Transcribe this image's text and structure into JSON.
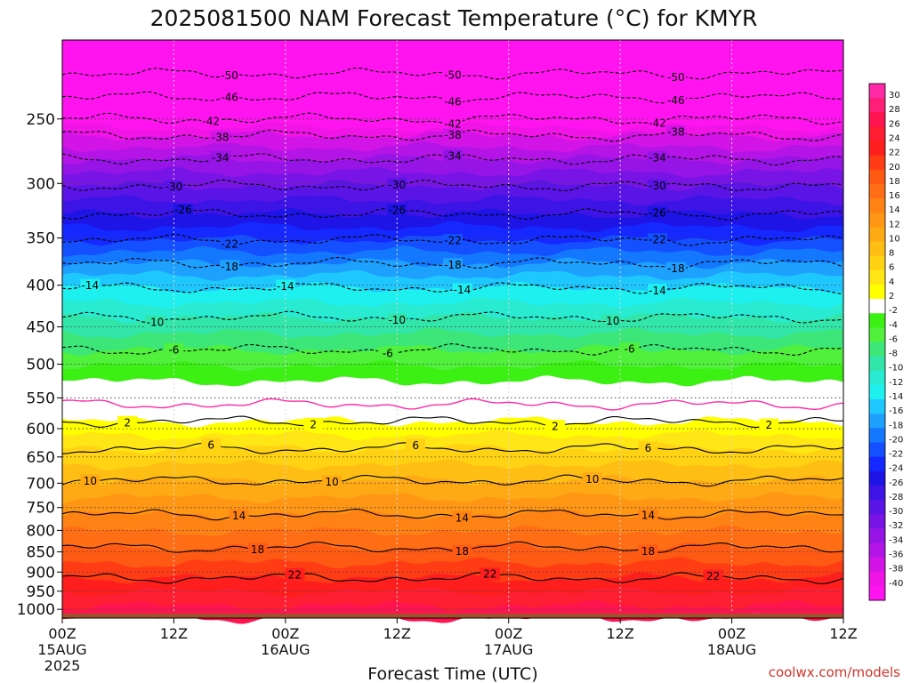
{
  "chart_data": {
    "type": "heatmap",
    "title": "2025081500 NAM Forecast Temperature (°C) for KMYR",
    "xlabel": "Forecast Time (UTC)",
    "ylabel": "",
    "credit": "coolwx.com/models",
    "x_ticks": [
      {
        "hours": 0,
        "label": "00Z",
        "sub": "15AUG",
        "sub2": "2025"
      },
      {
        "hours": 12,
        "label": "12Z",
        "sub": "",
        "sub2": ""
      },
      {
        "hours": 24,
        "label": "00Z",
        "sub": "16AUG",
        "sub2": ""
      },
      {
        "hours": 36,
        "label": "12Z",
        "sub": "",
        "sub2": ""
      },
      {
        "hours": 48,
        "label": "00Z",
        "sub": "17AUG",
        "sub2": ""
      },
      {
        "hours": 60,
        "label": "12Z",
        "sub": "",
        "sub2": ""
      },
      {
        "hours": 72,
        "label": "00Z",
        "sub": "18AUG",
        "sub2": ""
      },
      {
        "hours": 84,
        "label": "12Z",
        "sub": "",
        "sub2": ""
      }
    ],
    "xlim_hours": [
      0,
      84
    ],
    "y_ticks": [
      250,
      300,
      350,
      400,
      450,
      500,
      550,
      600,
      650,
      700,
      750,
      800,
      850,
      900,
      950,
      1000
    ],
    "ylim_hPa": [
      1025,
      200
    ],
    "y_scale": "log-pressure",
    "ground_level_hPa": 1012,
    "colorbar": {
      "levels": [
        30,
        28,
        26,
        24,
        22,
        20,
        18,
        16,
        14,
        12,
        10,
        8,
        6,
        4,
        2,
        -2,
        -4,
        -6,
        -8,
        -10,
        -12,
        -14,
        -16,
        -18,
        -20,
        -22,
        -24,
        -26,
        -28,
        -30,
        -32,
        -34,
        -36,
        -38,
        -40
      ],
      "colors": [
        "#ff2aa8",
        "#ff1e78",
        "#ff1450",
        "#ff1e32",
        "#ff1e1e",
        "#ff3c14",
        "#ff5a14",
        "#ff6e14",
        "#ff8214",
        "#ff9614",
        "#ffaa14",
        "#ffbe14",
        "#ffd214",
        "#ffe614",
        "#ffff00",
        "#ffffff",
        "#3cf014",
        "#50f03c",
        "#3ce678",
        "#32e6aa",
        "#28ebd2",
        "#1ef0f0",
        "#1ec8ff",
        "#1ea0ff",
        "#1478ff",
        "#1450ff",
        "#1428ff",
        "#1e14e6",
        "#3c14e6",
        "#5a14e6",
        "#7814e6",
        "#9614e6",
        "#b414e6",
        "#d214e6",
        "#f014e6",
        "#ff14f0"
      ],
      "placement": "right"
    },
    "profile": [
      {
        "hPa": 200,
        "temp": -54
      },
      {
        "hPa": 220,
        "temp": -50
      },
      {
        "hPa": 235,
        "temp": -46
      },
      {
        "hPa": 250,
        "temp": -42
      },
      {
        "hPa": 262,
        "temp": -38
      },
      {
        "hPa": 280,
        "temp": -34
      },
      {
        "hPa": 302,
        "temp": -30
      },
      {
        "hPa": 327,
        "temp": -26
      },
      {
        "hPa": 352,
        "temp": -22
      },
      {
        "hPa": 376,
        "temp": -18
      },
      {
        "hPa": 403,
        "temp": -14
      },
      {
        "hPa": 438,
        "temp": -10
      },
      {
        "hPa": 480,
        "temp": -6
      },
      {
        "hPa": 525,
        "temp": -2
      },
      {
        "hPa": 560,
        "temp": 0
      },
      {
        "hPa": 588,
        "temp": 2
      },
      {
        "hPa": 635,
        "temp": 6
      },
      {
        "hPa": 695,
        "temp": 10
      },
      {
        "hPa": 765,
        "temp": 14
      },
      {
        "hPa": 840,
        "temp": 18
      },
      {
        "hPa": 915,
        "temp": 22
      },
      {
        "hPa": 990,
        "temp": 26
      },
      {
        "hPa": 1025,
        "temp": 28
      }
    ],
    "contour_labels": [
      {
        "value": "-50",
        "hours": [
          18,
          42,
          66
        ]
      },
      {
        "value": "-46",
        "hours": [
          18,
          42,
          66
        ]
      },
      {
        "value": "-42",
        "hours": [
          16,
          42,
          64
        ]
      },
      {
        "value": "-38",
        "hours": [
          17,
          42,
          66
        ]
      },
      {
        "value": "-34",
        "hours": [
          17,
          42,
          64
        ]
      },
      {
        "value": "-30",
        "hours": [
          12,
          36,
          64
        ]
      },
      {
        "value": "-26",
        "hours": [
          13,
          36,
          64
        ]
      },
      {
        "value": "-22",
        "hours": [
          18,
          42,
          64
        ]
      },
      {
        "value": "-18",
        "hours": [
          18,
          42,
          66
        ]
      },
      {
        "value": "-14",
        "hours": [
          3,
          24,
          43,
          64
        ]
      },
      {
        "value": "-10",
        "hours": [
          10,
          36,
          59
        ]
      },
      {
        "value": "-6",
        "hours": [
          12,
          35,
          61
        ]
      },
      {
        "value": "2",
        "hours": [
          7,
          27,
          53,
          76
        ]
      },
      {
        "value": "6",
        "hours": [
          16,
          38,
          63
        ]
      },
      {
        "value": "10",
        "hours": [
          3,
          29,
          57
        ]
      },
      {
        "value": "14",
        "hours": [
          19,
          43,
          63
        ]
      },
      {
        "value": "18",
        "hours": [
          21,
          43,
          63
        ]
      },
      {
        "value": "22",
        "hours": [
          25,
          46,
          70
        ]
      }
    ]
  }
}
